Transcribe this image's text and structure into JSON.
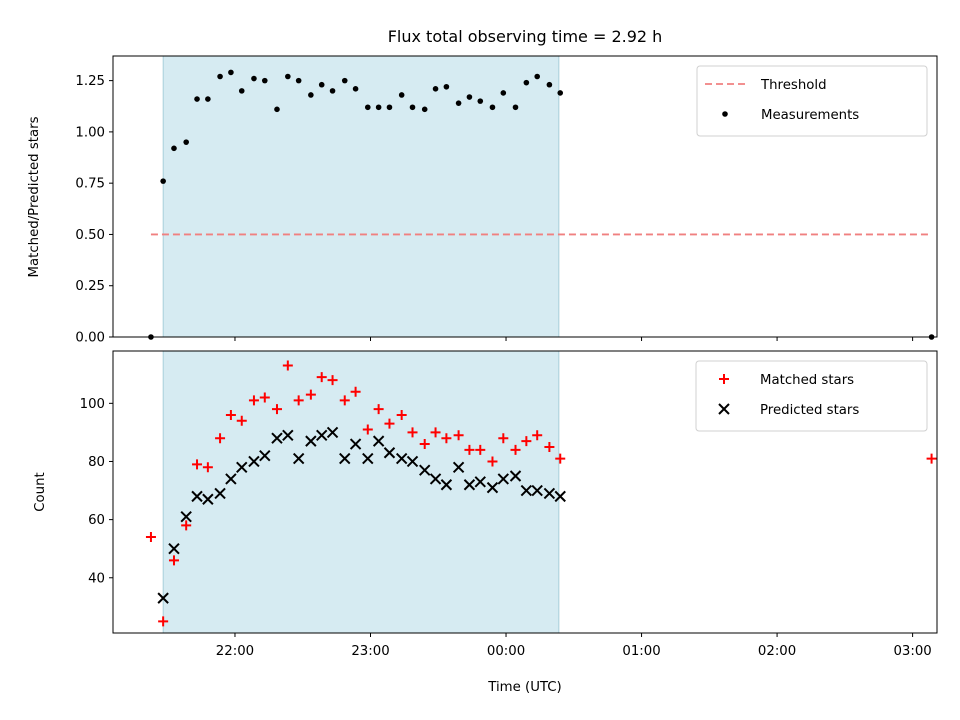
{
  "chart_data": [
    {
      "type": "scatter",
      "title": "Flux total observing time = 2.92 h",
      "ylabel": "Matched/Predicted stars",
      "xlabel": "",
      "ylim": [
        0,
        1.37
      ],
      "yticks": [
        0.0,
        0.25,
        0.5,
        0.75,
        1.0,
        1.25
      ],
      "ytick_labels": [
        "0.00",
        "0.25",
        "0.50",
        "0.75",
        "1.00",
        "1.25"
      ],
      "xlim_hours": [
        -2.9,
        3.18
      ],
      "xticks_hours": [
        -2,
        -1,
        0,
        1,
        2,
        3
      ],
      "shaded_span_hours": [
        -2.53,
        0.39
      ],
      "shade_color": "#add8e6",
      "legend_position": "top-right",
      "threshold": {
        "name": "Threshold",
        "y": 0.5,
        "x_range_hours": [
          -2.62,
          3.14
        ],
        "color": "#f08080",
        "style": "dashed"
      },
      "series": [
        {
          "name": "Measurements",
          "marker": "dot",
          "color": "#000000",
          "points": [
            [
              -2.62,
              0.0
            ],
            [
              -2.53,
              0.76
            ],
            [
              -2.45,
              0.92
            ],
            [
              -2.36,
              0.95
            ],
            [
              -2.28,
              1.16
            ],
            [
              -2.2,
              1.16
            ],
            [
              -2.11,
              1.27
            ],
            [
              -2.03,
              1.29
            ],
            [
              -1.95,
              1.2
            ],
            [
              -1.86,
              1.26
            ],
            [
              -1.78,
              1.25
            ],
            [
              -1.69,
              1.11
            ],
            [
              -1.61,
              1.27
            ],
            [
              -1.53,
              1.25
            ],
            [
              -1.44,
              1.18
            ],
            [
              -1.36,
              1.23
            ],
            [
              -1.28,
              1.2
            ],
            [
              -1.19,
              1.25
            ],
            [
              -1.11,
              1.21
            ],
            [
              -1.02,
              1.12
            ],
            [
              -0.94,
              1.12
            ],
            [
              -0.86,
              1.12
            ],
            [
              -0.77,
              1.18
            ],
            [
              -0.69,
              1.12
            ],
            [
              -0.6,
              1.11
            ],
            [
              -0.52,
              1.21
            ],
            [
              -0.44,
              1.22
            ],
            [
              -0.35,
              1.14
            ],
            [
              -0.27,
              1.17
            ],
            [
              -0.19,
              1.15
            ],
            [
              -0.1,
              1.12
            ],
            [
              -0.02,
              1.19
            ],
            [
              0.07,
              1.12
            ],
            [
              0.15,
              1.24
            ],
            [
              0.23,
              1.27
            ],
            [
              0.32,
              1.23
            ],
            [
              0.4,
              1.19
            ],
            [
              3.14,
              0.0
            ]
          ]
        }
      ]
    },
    {
      "type": "scatter",
      "title": "",
      "xlabel": "Time (UTC)",
      "ylabel": "Count",
      "ylim": [
        21,
        118
      ],
      "yticks": [
        40,
        60,
        80,
        100
      ],
      "ytick_labels": [
        "40",
        "60",
        "80",
        "100"
      ],
      "xlim_hours": [
        -2.9,
        3.18
      ],
      "xticks_hours": [
        -2,
        -1,
        0,
        1,
        2,
        3
      ],
      "xtick_labels": [
        "22:00",
        "23:00",
        "00:00",
        "01:00",
        "02:00",
        "03:00"
      ],
      "shaded_span_hours": [
        -2.53,
        0.39
      ],
      "shade_color": "#add8e6",
      "legend_position": "top-right",
      "series": [
        {
          "name": "Matched stars",
          "marker": "plus",
          "color": "#ff0000",
          "points": [
            [
              -2.62,
              54
            ],
            [
              -2.53,
              25
            ],
            [
              -2.45,
              46
            ],
            [
              -2.36,
              58
            ],
            [
              -2.28,
              79
            ],
            [
              -2.2,
              78
            ],
            [
              -2.11,
              88
            ],
            [
              -2.03,
              96
            ],
            [
              -1.95,
              94
            ],
            [
              -1.86,
              101
            ],
            [
              -1.78,
              102
            ],
            [
              -1.69,
              98
            ],
            [
              -1.61,
              113
            ],
            [
              -1.53,
              101
            ],
            [
              -1.44,
              103
            ],
            [
              -1.36,
              109
            ],
            [
              -1.28,
              108
            ],
            [
              -1.19,
              101
            ],
            [
              -1.11,
              104
            ],
            [
              -1.02,
              91
            ],
            [
              -0.94,
              98
            ],
            [
              -0.86,
              93
            ],
            [
              -0.77,
              96
            ],
            [
              -0.69,
              90
            ],
            [
              -0.6,
              86
            ],
            [
              -0.52,
              90
            ],
            [
              -0.44,
              88
            ],
            [
              -0.35,
              89
            ],
            [
              -0.27,
              84
            ],
            [
              -0.19,
              84
            ],
            [
              -0.1,
              80
            ],
            [
              -0.02,
              88
            ],
            [
              0.07,
              84
            ],
            [
              0.15,
              87
            ],
            [
              0.23,
              89
            ],
            [
              0.32,
              85
            ],
            [
              0.4,
              81
            ],
            [
              3.14,
              81
            ]
          ]
        },
        {
          "name": "Predicted stars",
          "marker": "x",
          "color": "#000000",
          "points": [
            [
              -2.53,
              33
            ],
            [
              -2.45,
              50
            ],
            [
              -2.36,
              61
            ],
            [
              -2.28,
              68
            ],
            [
              -2.2,
              67
            ],
            [
              -2.11,
              69
            ],
            [
              -2.03,
              74
            ],
            [
              -1.95,
              78
            ],
            [
              -1.86,
              80
            ],
            [
              -1.78,
              82
            ],
            [
              -1.69,
              88
            ],
            [
              -1.61,
              89
            ],
            [
              -1.53,
              81
            ],
            [
              -1.44,
              87
            ],
            [
              -1.36,
              89
            ],
            [
              -1.28,
              90
            ],
            [
              -1.19,
              81
            ],
            [
              -1.11,
              86
            ],
            [
              -1.02,
              81
            ],
            [
              -0.94,
              87
            ],
            [
              -0.86,
              83
            ],
            [
              -0.77,
              81
            ],
            [
              -0.69,
              80
            ],
            [
              -0.6,
              77
            ],
            [
              -0.52,
              74
            ],
            [
              -0.44,
              72
            ],
            [
              -0.35,
              78
            ],
            [
              -0.27,
              72
            ],
            [
              -0.19,
              73
            ],
            [
              -0.1,
              71
            ],
            [
              -0.02,
              74
            ],
            [
              0.07,
              75
            ],
            [
              0.15,
              70
            ],
            [
              0.23,
              70
            ],
            [
              0.32,
              69
            ],
            [
              0.4,
              68
            ]
          ]
        }
      ]
    }
  ]
}
